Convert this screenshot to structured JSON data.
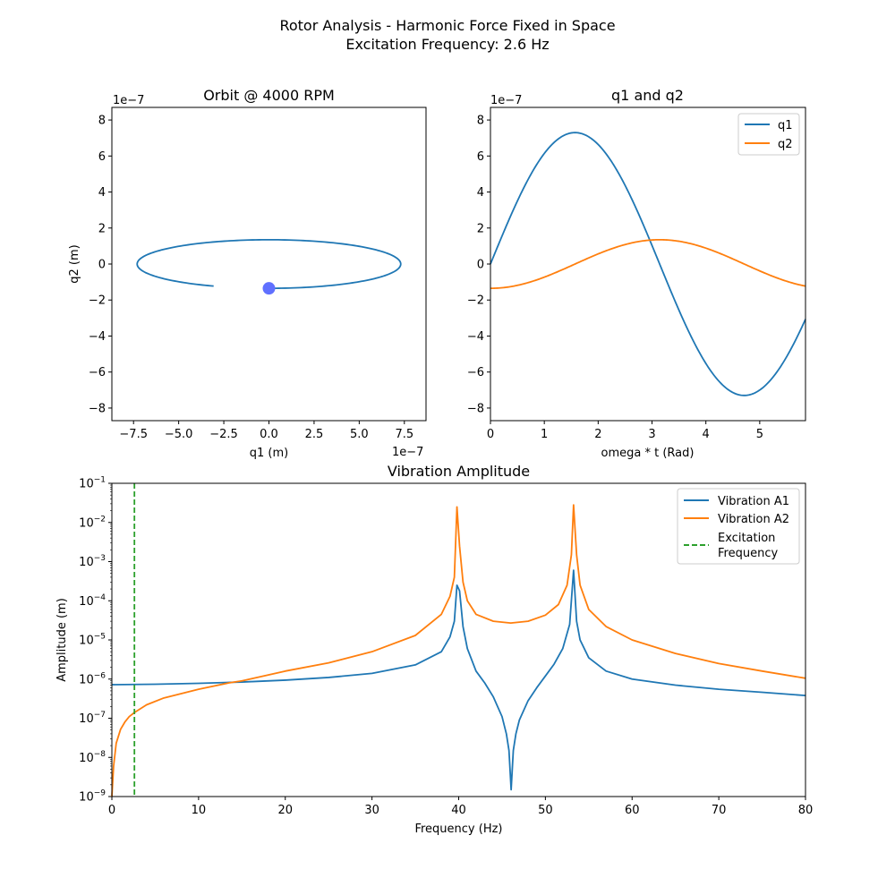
{
  "figure": {
    "title_line1": "Rotor Analysis - Harmonic Force Fixed in Space",
    "title_line2": "Excitation Frequency: 2.6 Hz"
  },
  "colors": {
    "blue": "#1f77b4",
    "orange": "#ff7f0e",
    "green": "#2ca02c",
    "marker": "#6070ff"
  },
  "chart_data": [
    {
      "type": "line",
      "title": "Orbit @ 4000 RPM",
      "xlabel": "q1 (m)",
      "ylabel": "q2 (m)",
      "x_offset_label": "1e−7",
      "y_offset_label": "1e−7",
      "xlim": [
        -8.7,
        8.7
      ],
      "ylim": [
        -8.7,
        8.7
      ],
      "xticks": [
        -7.5,
        -5.0,
        -2.5,
        0.0,
        2.5,
        5.0,
        7.5
      ],
      "xtick_labels": [
        "−7.5",
        "−5.0",
        "−2.5",
        "0.0",
        "2.5",
        "5.0",
        "7.5"
      ],
      "yticks": [
        -8,
        -6,
        -4,
        -2,
        0,
        2,
        4,
        6,
        8
      ],
      "ytick_labels": [
        "−8",
        "−6",
        "−4",
        "−2",
        "0",
        "2",
        "4",
        "6",
        "8"
      ],
      "series": [
        {
          "q1_amplitude": 7.3,
          "q2_amplitude": 1.35,
          "theta_range": [
            0,
            5.85
          ]
        }
      ],
      "marker_point": {
        "x": 0.0,
        "y": -1.35
      }
    },
    {
      "type": "line",
      "title": "q1 and q2",
      "xlabel": "omega * t (Rad)",
      "y_offset_label": "1e−7",
      "xlim": [
        0,
        5.85
      ],
      "ylim": [
        -8.7,
        8.7
      ],
      "xticks": [
        0,
        1,
        2,
        3,
        4,
        5
      ],
      "xtick_labels": [
        "0",
        "1",
        "2",
        "3",
        "4",
        "5"
      ],
      "yticks": [
        -8,
        -6,
        -4,
        -2,
        0,
        2,
        4,
        6,
        8
      ],
      "ytick_labels": [
        "−8",
        "−6",
        "−4",
        "−2",
        "0",
        "2",
        "4",
        "6",
        "8"
      ],
      "series": [
        {
          "name": "q1",
          "amplitude": 7.3,
          "shape": "sin"
        },
        {
          "name": "q2",
          "amplitude": 1.35,
          "shape": "-cos"
        }
      ],
      "legend": "top-right"
    },
    {
      "type": "line",
      "title": "Vibration Amplitude",
      "xlabel": "Frequency (Hz)",
      "ylabel": "Amplitude (m)",
      "yscale": "log",
      "xlim": [
        0,
        80
      ],
      "ylim": [
        1e-09,
        0.1
      ],
      "xticks": [
        0,
        10,
        20,
        30,
        40,
        50,
        60,
        70,
        80
      ],
      "xtick_labels": [
        "0",
        "10",
        "20",
        "30",
        "40",
        "50",
        "60",
        "70",
        "80"
      ],
      "ytick_exponents": [
        -9,
        -8,
        -7,
        -6,
        -5,
        -4,
        -3,
        -2,
        -1
      ],
      "ytick_base": "10",
      "ytick_exps": [
        "−9",
        "−8",
        "−7",
        "−6",
        "−5",
        "−4",
        "−3",
        "−2",
        "−1"
      ],
      "series": [
        {
          "name": "Vibration A1",
          "x": [
            0,
            5,
            10,
            15,
            20,
            25,
            30,
            35,
            38,
            39,
            39.5,
            39.8,
            40.1,
            40.5,
            41,
            42,
            43,
            44,
            45,
            45.5,
            45.8,
            46.05,
            46.3,
            46.6,
            47,
            48,
            49,
            50,
            51,
            52,
            52.8,
            53.25,
            53.6,
            54,
            55,
            57,
            60,
            65,
            70,
            75,
            80
          ],
          "y": [
            7.2e-07,
            7.4e-07,
            7.8e-07,
            8.4e-07,
            9.4e-07,
            1.1e-06,
            1.4e-06,
            2.3e-06,
            5e-06,
            1.2e-05,
            3e-05,
            0.00025,
            0.00018,
            2.2e-05,
            6e-06,
            1.6e-06,
            8e-07,
            3.5e-07,
            1.1e-07,
            4e-08,
            1.5e-08,
            1.5e-09,
            1.5e-08,
            4e-08,
            9e-08,
            2.8e-07,
            6e-07,
            1.2e-06,
            2.4e-06,
            6e-06,
            2.5e-05,
            0.0006,
            3e-05,
            1e-05,
            3.5e-06,
            1.6e-06,
            1e-06,
            7e-07,
            5.5e-07,
            4.6e-07,
            3.8e-07
          ]
        },
        {
          "name": "Vibration A2",
          "x": [
            0,
            0.2,
            0.5,
            1,
            1.5,
            2,
            2.6,
            4,
            6,
            10,
            13.5,
            15,
            20,
            25,
            30,
            35,
            38,
            39,
            39.5,
            39.8,
            40.1,
            40.5,
            41,
            42,
            44,
            46,
            48,
            50,
            51.5,
            52.5,
            53.0,
            53.25,
            53.6,
            54,
            55,
            57,
            60,
            65,
            70,
            75,
            80
          ],
          "y": [
            1e-09,
            6e-09,
            2.3e-08,
            5.2e-08,
            8e-08,
            1.1e-07,
            1.4e-07,
            2.2e-07,
            3.3e-07,
            5.5e-07,
            8e-07,
            9e-07,
            1.6e-06,
            2.6e-06,
            5e-06,
            1.3e-05,
            4.5e-05,
            0.00013,
            0.0004,
            0.025,
            0.0025,
            0.0003,
            0.0001,
            4.5e-05,
            3e-05,
            2.7e-05,
            3e-05,
            4.3e-05,
            8e-05,
            0.00025,
            0.0015,
            0.028,
            0.0015,
            0.00025,
            6e-05,
            2.2e-05,
            1e-05,
            4.5e-06,
            2.5e-06,
            1.6e-06,
            1.05e-06
          ]
        }
      ],
      "excitation_line": {
        "name": "Excitation Frequency",
        "legend_line1": "Excitation",
        "legend_line2": "Frequency",
        "x": 2.6
      },
      "legend": "top-right"
    }
  ]
}
